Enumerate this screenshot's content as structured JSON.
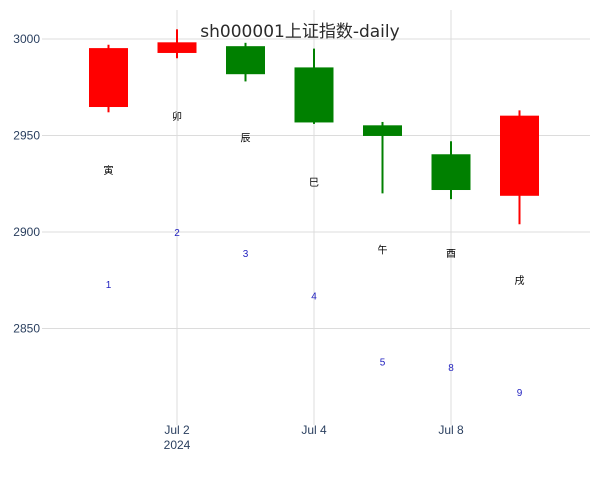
{
  "chart_data": {
    "type": "candlestick",
    "title": "sh000001上证指数-daily",
    "xlabel": "",
    "ylabel": "",
    "y_ticks": [
      2850,
      2900,
      2950,
      3000
    ],
    "ylim": [
      2800,
      3015
    ],
    "x_ticks": [
      {
        "label": "Jul 2",
        "sublabel": "2024",
        "x": 2
      },
      {
        "label": "Jul 4",
        "sublabel": "",
        "x": 4
      },
      {
        "label": "Jul 8",
        "sublabel": "",
        "x": 6
      }
    ],
    "grid": true,
    "up_color": "#ff0000",
    "down_color": "#008000",
    "candles": [
      {
        "x": 1,
        "open": 2965,
        "high": 2997,
        "low": 2962,
        "close": 2995,
        "color": "#ff0000"
      },
      {
        "x": 2,
        "open": 2993,
        "high": 3005,
        "low": 2990,
        "close": 2998,
        "color": "#ff0000"
      },
      {
        "x": 3,
        "open": 2996,
        "high": 2998,
        "low": 2978,
        "close": 2982,
        "color": "#008000"
      },
      {
        "x": 4,
        "open": 2985,
        "high": 2995,
        "low": 2956,
        "close": 2957,
        "color": "#008000"
      },
      {
        "x": 5,
        "open": 2955,
        "high": 2957,
        "low": 2920,
        "close": 2950,
        "color": "#008000"
      },
      {
        "x": 6,
        "open": 2940,
        "high": 2947,
        "low": 2917,
        "close": 2922,
        "color": "#008000"
      },
      {
        "x": 7,
        "open": 2919,
        "high": 2963,
        "low": 2904,
        "close": 2960,
        "color": "#ff0000"
      }
    ],
    "branch_labels": [
      {
        "x": 1,
        "y": 2932,
        "text": "寅"
      },
      {
        "x": 2,
        "y": 2960,
        "text": "卯"
      },
      {
        "x": 3,
        "y": 2949,
        "text": "辰"
      },
      {
        "x": 4,
        "y": 2926,
        "text": "巳"
      },
      {
        "x": 5,
        "y": 2891,
        "text": "午"
      },
      {
        "x": 6,
        "y": 2889,
        "text": "酉"
      },
      {
        "x": 7,
        "y": 2875,
        "text": "戌"
      }
    ],
    "number_labels": [
      {
        "x": 1,
        "y": 2873,
        "text": "1"
      },
      {
        "x": 2,
        "y": 2900,
        "text": "2"
      },
      {
        "x": 3,
        "y": 2889,
        "text": "3"
      },
      {
        "x": 4,
        "y": 2867,
        "text": "4"
      },
      {
        "x": 5,
        "y": 2833,
        "text": "5"
      },
      {
        "x": 6,
        "y": 2830,
        "text": "8"
      },
      {
        "x": 7,
        "y": 2817,
        "text": "9"
      }
    ]
  }
}
